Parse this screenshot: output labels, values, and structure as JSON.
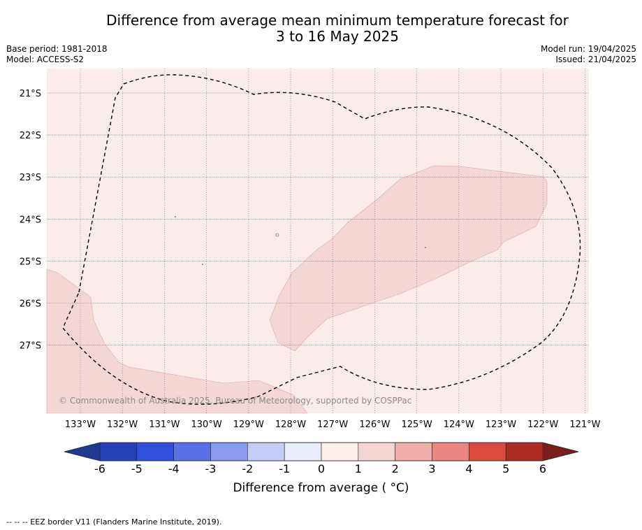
{
  "title": {
    "line1": "Difference from average mean minimum temperature forecast for",
    "line2": "3 to 16 May 2025"
  },
  "meta": {
    "base_period": "Base period: 1981-2018",
    "model": "Model: ACCESS-S2",
    "model_run": "Model run: 19/04/2025",
    "issued": "Issued: 21/04/2025"
  },
  "map": {
    "lon_range": [
      -133.8,
      -120.9
    ],
    "lat_range": [
      -28.6,
      -20.4
    ],
    "lon_ticks": [
      "133°W",
      "132°W",
      "131°W",
      "130°W",
      "129°W",
      "128°W",
      "127°W",
      "126°W",
      "125°W",
      "124°W",
      "123°W",
      "122°W",
      "121°W"
    ],
    "lat_ticks": [
      "21°S",
      "22°S",
      "23°S",
      "24°S",
      "25°S",
      "26°S",
      "27°S"
    ],
    "background_class": "0 to 1",
    "colors": {
      "bin_0_1": "#fbebea",
      "bin_1_2": "#f5d6d5",
      "grid": "#8a6a7a",
      "eez": "#000000"
    },
    "copyright": "© Commonwealth of Australia 2025, Bureau of Meteorology, supported by COSPPac"
  },
  "colorbar": {
    "ticks": [
      "-6",
      "-5",
      "-4",
      "-3",
      "-2",
      "-1",
      "0",
      "1",
      "2",
      "3",
      "4",
      "5",
      "6"
    ],
    "colors": [
      "#1f3a93",
      "#2340b8",
      "#3150e0",
      "#5a72e6",
      "#8a9bef",
      "#c3cbf6",
      "#e9edfb",
      "#fdeeec",
      "#f5d6d5",
      "#efaea9",
      "#e9867f",
      "#dc4a40",
      "#ae2b24",
      "#7a1f1c"
    ],
    "label": "Difference from average ( °C)"
  },
  "footer": {
    "legend": "--  --  -- EEZ border V11 (Flanders Marine Institute, 2019)."
  }
}
